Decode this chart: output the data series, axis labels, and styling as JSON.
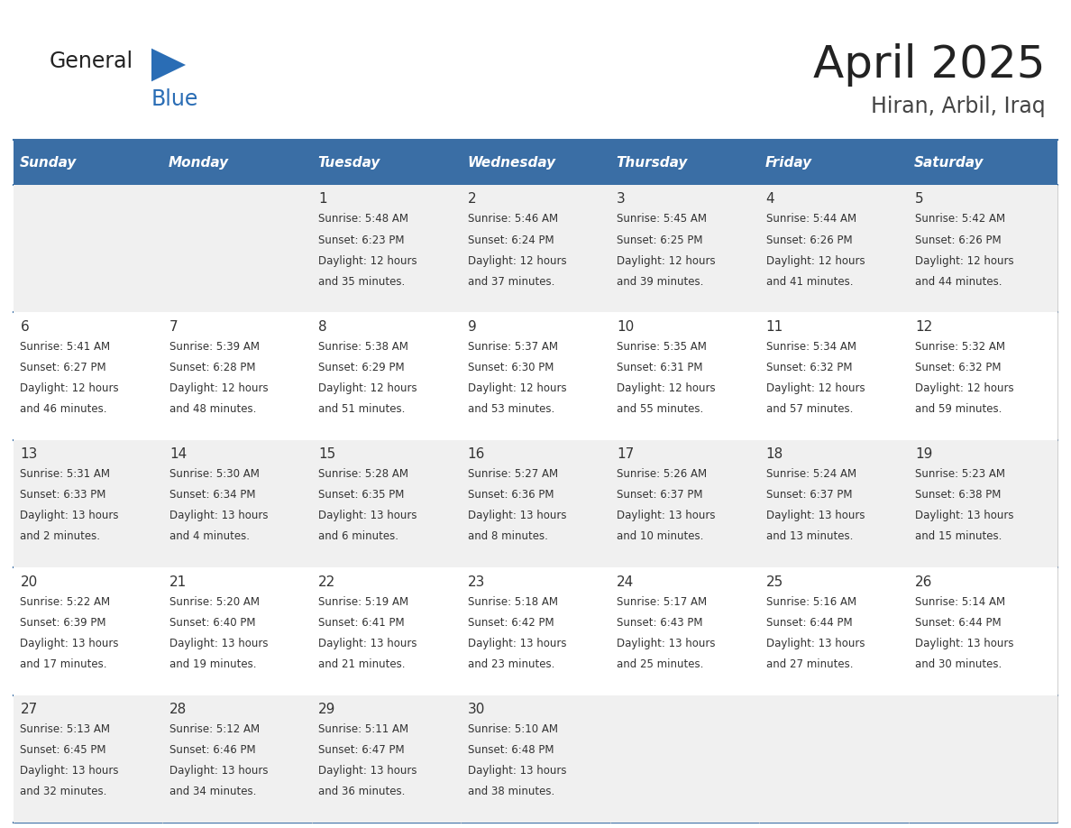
{
  "title": "April 2025",
  "subtitle": "Hiran, Arbil, Iraq",
  "header_color": "#3a6ea5",
  "header_text_color": "#ffffff",
  "row_bg_odd": "#f0f0f0",
  "row_bg_even": "#ffffff",
  "day_headers": [
    "Sunday",
    "Monday",
    "Tuesday",
    "Wednesday",
    "Thursday",
    "Friday",
    "Saturday"
  ],
  "title_color": "#222222",
  "subtitle_color": "#444444",
  "line_color": "#3a6ea5",
  "text_color": "#333333",
  "logo_general_color": "#222222",
  "logo_blue_color": "#2a6db5",
  "logo_triangle_color": "#2a6db5",
  "days": [
    {
      "day": 1,
      "col": 2,
      "row": 0,
      "sunrise": "5:48 AM",
      "sunset": "6:23 PM",
      "daylight": "12 hours and 35 minutes"
    },
    {
      "day": 2,
      "col": 3,
      "row": 0,
      "sunrise": "5:46 AM",
      "sunset": "6:24 PM",
      "daylight": "12 hours and 37 minutes"
    },
    {
      "day": 3,
      "col": 4,
      "row": 0,
      "sunrise": "5:45 AM",
      "sunset": "6:25 PM",
      "daylight": "12 hours and 39 minutes"
    },
    {
      "day": 4,
      "col": 5,
      "row": 0,
      "sunrise": "5:44 AM",
      "sunset": "6:26 PM",
      "daylight": "12 hours and 41 minutes"
    },
    {
      "day": 5,
      "col": 6,
      "row": 0,
      "sunrise": "5:42 AM",
      "sunset": "6:26 PM",
      "daylight": "12 hours and 44 minutes"
    },
    {
      "day": 6,
      "col": 0,
      "row": 1,
      "sunrise": "5:41 AM",
      "sunset": "6:27 PM",
      "daylight": "12 hours and 46 minutes"
    },
    {
      "day": 7,
      "col": 1,
      "row": 1,
      "sunrise": "5:39 AM",
      "sunset": "6:28 PM",
      "daylight": "12 hours and 48 minutes"
    },
    {
      "day": 8,
      "col": 2,
      "row": 1,
      "sunrise": "5:38 AM",
      "sunset": "6:29 PM",
      "daylight": "12 hours and 51 minutes"
    },
    {
      "day": 9,
      "col": 3,
      "row": 1,
      "sunrise": "5:37 AM",
      "sunset": "6:30 PM",
      "daylight": "12 hours and 53 minutes"
    },
    {
      "day": 10,
      "col": 4,
      "row": 1,
      "sunrise": "5:35 AM",
      "sunset": "6:31 PM",
      "daylight": "12 hours and 55 minutes"
    },
    {
      "day": 11,
      "col": 5,
      "row": 1,
      "sunrise": "5:34 AM",
      "sunset": "6:32 PM",
      "daylight": "12 hours and 57 minutes"
    },
    {
      "day": 12,
      "col": 6,
      "row": 1,
      "sunrise": "5:32 AM",
      "sunset": "6:32 PM",
      "daylight": "12 hours and 59 minutes"
    },
    {
      "day": 13,
      "col": 0,
      "row": 2,
      "sunrise": "5:31 AM",
      "sunset": "6:33 PM",
      "daylight": "13 hours and 2 minutes"
    },
    {
      "day": 14,
      "col": 1,
      "row": 2,
      "sunrise": "5:30 AM",
      "sunset": "6:34 PM",
      "daylight": "13 hours and 4 minutes"
    },
    {
      "day": 15,
      "col": 2,
      "row": 2,
      "sunrise": "5:28 AM",
      "sunset": "6:35 PM",
      "daylight": "13 hours and 6 minutes"
    },
    {
      "day": 16,
      "col": 3,
      "row": 2,
      "sunrise": "5:27 AM",
      "sunset": "6:36 PM",
      "daylight": "13 hours and 8 minutes"
    },
    {
      "day": 17,
      "col": 4,
      "row": 2,
      "sunrise": "5:26 AM",
      "sunset": "6:37 PM",
      "daylight": "13 hours and 10 minutes"
    },
    {
      "day": 18,
      "col": 5,
      "row": 2,
      "sunrise": "5:24 AM",
      "sunset": "6:37 PM",
      "daylight": "13 hours and 13 minutes"
    },
    {
      "day": 19,
      "col": 6,
      "row": 2,
      "sunrise": "5:23 AM",
      "sunset": "6:38 PM",
      "daylight": "13 hours and 15 minutes"
    },
    {
      "day": 20,
      "col": 0,
      "row": 3,
      "sunrise": "5:22 AM",
      "sunset": "6:39 PM",
      "daylight": "13 hours and 17 minutes"
    },
    {
      "day": 21,
      "col": 1,
      "row": 3,
      "sunrise": "5:20 AM",
      "sunset": "6:40 PM",
      "daylight": "13 hours and 19 minutes"
    },
    {
      "day": 22,
      "col": 2,
      "row": 3,
      "sunrise": "5:19 AM",
      "sunset": "6:41 PM",
      "daylight": "13 hours and 21 minutes"
    },
    {
      "day": 23,
      "col": 3,
      "row": 3,
      "sunrise": "5:18 AM",
      "sunset": "6:42 PM",
      "daylight": "13 hours and 23 minutes"
    },
    {
      "day": 24,
      "col": 4,
      "row": 3,
      "sunrise": "5:17 AM",
      "sunset": "6:43 PM",
      "daylight": "13 hours and 25 minutes"
    },
    {
      "day": 25,
      "col": 5,
      "row": 3,
      "sunrise": "5:16 AM",
      "sunset": "6:44 PM",
      "daylight": "13 hours and 27 minutes"
    },
    {
      "day": 26,
      "col": 6,
      "row": 3,
      "sunrise": "5:14 AM",
      "sunset": "6:44 PM",
      "daylight": "13 hours and 30 minutes"
    },
    {
      "day": 27,
      "col": 0,
      "row": 4,
      "sunrise": "5:13 AM",
      "sunset": "6:45 PM",
      "daylight": "13 hours and 32 minutes"
    },
    {
      "day": 28,
      "col": 1,
      "row": 4,
      "sunrise": "5:12 AM",
      "sunset": "6:46 PM",
      "daylight": "13 hours and 34 minutes"
    },
    {
      "day": 29,
      "col": 2,
      "row": 4,
      "sunrise": "5:11 AM",
      "sunset": "6:47 PM",
      "daylight": "13 hours and 36 minutes"
    },
    {
      "day": 30,
      "col": 3,
      "row": 4,
      "sunrise": "5:10 AM",
      "sunset": "6:48 PM",
      "daylight": "13 hours and 38 minutes"
    }
  ]
}
